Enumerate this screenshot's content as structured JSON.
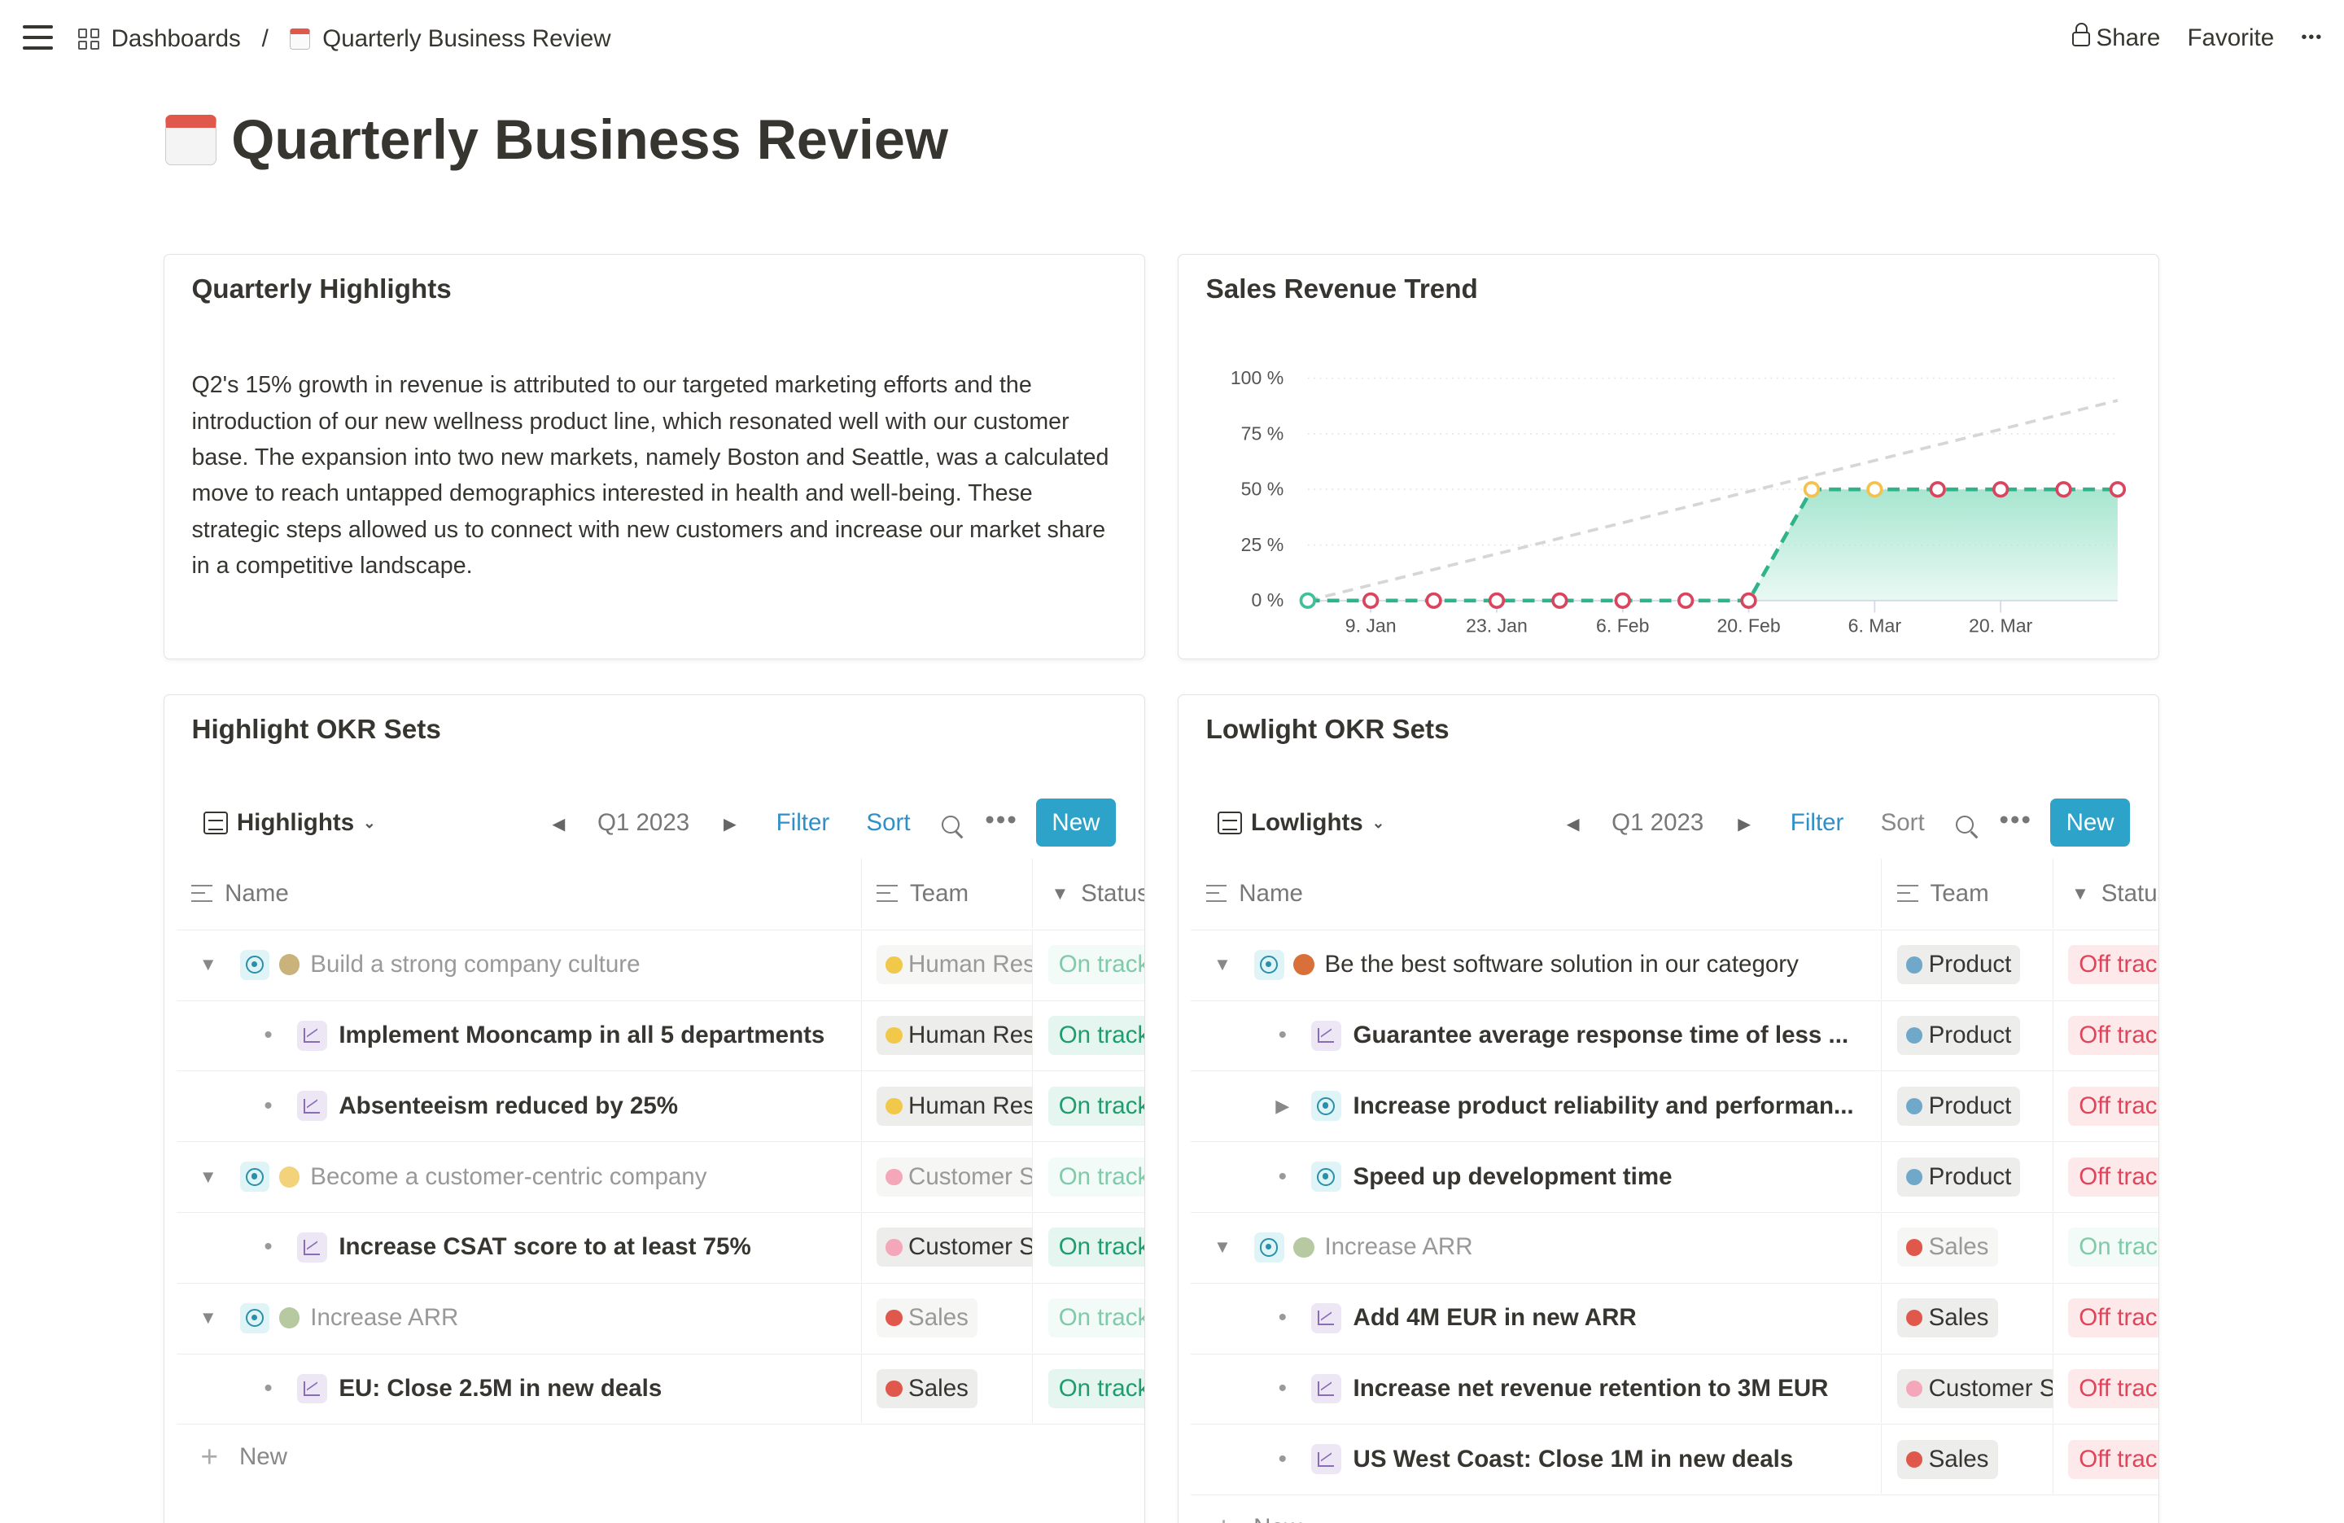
{
  "topbar": {
    "breadcrumb": [
      "Dashboards",
      "Quarterly Business Review"
    ],
    "separator": "/",
    "share": "Share",
    "favorite": "Favorite",
    "more": "•••"
  },
  "page": {
    "title": "Quarterly Business Review",
    "icon": "calendar-icon"
  },
  "highlights": {
    "title": "Quarterly Highlights",
    "text": "Q2's 15% growth in revenue is attributed to our targeted marketing efforts and the introduction of our new wellness product line, which resonated well with our customer base. The expansion into two new markets, namely Boston and Seattle, was a calculated move to reach untapped demographics interested in health and well-being. These strategic steps allowed us to connect with new customers and increase our market share in a competitive landscape."
  },
  "chart_data": {
    "type": "area",
    "title": "Sales Revenue Trend",
    "ylim": [
      0,
      100
    ],
    "yticks": [
      "0 %",
      "25 %",
      "50 %",
      "75 %",
      "100 %"
    ],
    "xticks": [
      "9. Jan",
      "23. Jan",
      "6. Feb",
      "20. Feb",
      "6. Mar",
      "20. Mar"
    ],
    "xtick_dates": [
      "2023-01-09",
      "2023-01-23",
      "2023-02-06",
      "2023-02-20",
      "2023-03-06",
      "2023-03-20"
    ],
    "series": [
      {
        "x": [
          "2023-01-02",
          "2023-01-09",
          "2023-01-16",
          "2023-01-23",
          "2023-01-30",
          "2023-02-06",
          "2023-02-13",
          "2023-02-20",
          "2023-02-27",
          "2023-03-06",
          "2023-03-13",
          "2023-03-20",
          "2023-03-27",
          "2023-04-02"
        ],
        "values": [
          0,
          0,
          0,
          0,
          0,
          0,
          0,
          0,
          50,
          50,
          50,
          50,
          50,
          50
        ],
        "point_status": [
          "green",
          "red",
          "red",
          "red",
          "red",
          "red",
          "red",
          "red",
          "yellow",
          "yellow",
          "red",
          "red",
          "red",
          "red"
        ]
      }
    ],
    "target": {
      "x": [
        "2023-01-02",
        "2023-04-02"
      ],
      "values": [
        0,
        90
      ]
    },
    "colors": {
      "line": "#2fb38a",
      "fill": "#a8e6d0",
      "red": "#d9455f",
      "yellow": "#f2c14e",
      "green": "#3fbf9a",
      "target": "#d6d6d6"
    },
    "grid": true
  },
  "highlightOkr": {
    "title": "Highlight OKR Sets",
    "view": "Highlights",
    "period": "Q1 2023",
    "filter": "Filter",
    "sort": "Sort",
    "new": "New",
    "columns": [
      "Name",
      "Team",
      "Status"
    ],
    "addNew": "New",
    "rows": [
      {
        "type": "objective",
        "faded": true,
        "caret": "down",
        "emoji": "#c9b37a",
        "name": "Build a strong company culture",
        "team": "Human Res",
        "teamColor": "#f2c84b",
        "status": "On track",
        "st": "on"
      },
      {
        "type": "kr",
        "name": "Implement Mooncamp in all 5 departments",
        "team": "Human Res",
        "teamColor": "#f2c84b",
        "status": "On track",
        "st": "on"
      },
      {
        "type": "kr",
        "name": "Absenteeism reduced by 25%",
        "team": "Human Res",
        "teamColor": "#f2c84b",
        "status": "On track",
        "st": "on"
      },
      {
        "type": "objective",
        "faded": true,
        "caret": "down",
        "emoji": "#f2d27a",
        "name": "Become a customer-centric company",
        "team": "Customer S",
        "teamColor": "#f4a7b9",
        "status": "On track",
        "st": "on"
      },
      {
        "type": "kr",
        "name": "Increase CSAT score to at least 75%",
        "team": "Customer S",
        "teamColor": "#f4a7b9",
        "status": "On track",
        "st": "on"
      },
      {
        "type": "objective",
        "faded": true,
        "caret": "down",
        "emoji": "#b7c9a0",
        "name": "Increase ARR",
        "team": "Sales",
        "teamColor": "#e0584b",
        "status": "On track",
        "st": "on"
      },
      {
        "type": "kr",
        "name": "EU: Close 2.5M in new deals",
        "team": "Sales",
        "teamColor": "#e0584b",
        "status": "On track",
        "st": "on"
      }
    ]
  },
  "lowlightOkr": {
    "title": "Lowlight OKR Sets",
    "view": "Lowlights",
    "period": "Q1 2023",
    "filter": "Filter",
    "sort": "Sort",
    "new": "New",
    "columns": [
      "Name",
      "Team",
      "Status"
    ],
    "addNew": "New",
    "rows": [
      {
        "type": "objective",
        "faded": false,
        "caret": "down",
        "emoji": "#d9703a",
        "name": "Be the best software solution in our category",
        "team": "Product",
        "teamColor": "#6fa8c9",
        "status": "Off track",
        "st": "off"
      },
      {
        "type": "kr",
        "name": "Guarantee average response time of less ...",
        "team": "Product",
        "teamColor": "#6fa8c9",
        "status": "Off track",
        "st": "off"
      },
      {
        "type": "subobjective",
        "caret": "right",
        "name": "Increase product reliability and performan...",
        "team": "Product",
        "teamColor": "#6fa8c9",
        "status": "Off track",
        "st": "off"
      },
      {
        "type": "subobjective",
        "name": "Speed up development time",
        "team": "Product",
        "teamColor": "#6fa8c9",
        "status": "Off track",
        "st": "off"
      },
      {
        "type": "objective",
        "faded": true,
        "caret": "down",
        "emoji": "#b7c9a0",
        "name": "Increase ARR",
        "team": "Sales",
        "teamColor": "#e0584b",
        "status": "On track",
        "st": "on"
      },
      {
        "type": "kr",
        "name": "Add 4M EUR in new ARR",
        "team": "Sales",
        "teamColor": "#e0584b",
        "status": "Off track",
        "st": "off"
      },
      {
        "type": "kr",
        "name": "Increase net revenue retention to 3M EUR",
        "team": "Customer S",
        "teamColor": "#f4a7b9",
        "status": "Off track",
        "st": "off"
      },
      {
        "type": "kr",
        "name": "US West Coast: Close 1M in new deals",
        "team": "Sales",
        "teamColor": "#e0584b",
        "status": "Off track",
        "st": "off"
      }
    ]
  }
}
